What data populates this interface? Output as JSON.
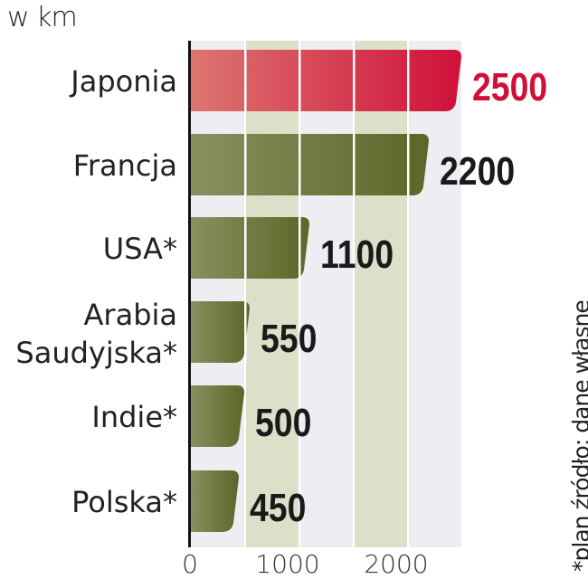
{
  "chart_data": {
    "type": "bar",
    "orientation": "horizontal",
    "unit_label": "w km",
    "categories": [
      "Japonia",
      "Francja",
      "USA*",
      "Arabia Saudyjska*",
      "Indie*",
      "Polska*"
    ],
    "values": [
      2500,
      2200,
      1100,
      550,
      500,
      450
    ],
    "xlim": [
      0,
      2500
    ],
    "xticks": [
      0,
      1000,
      2000
    ],
    "grid": true,
    "highlight_category": "Japonia",
    "colors": {
      "highlight": "#d0103a",
      "bar": "#5c6628",
      "bar_light": "#8a9060",
      "band": "#dedfc9",
      "band_alt": "#eceef2"
    },
    "note": "*plan  źródło: dane własne"
  }
}
